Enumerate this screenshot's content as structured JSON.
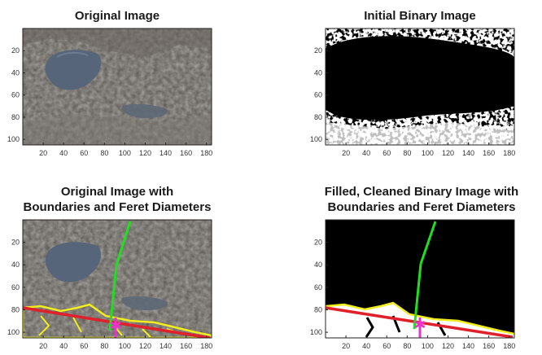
{
  "figure": {
    "panels": [
      {
        "id": "original",
        "title_lines": [
          "Original Image"
        ],
        "x_ticks": [
          "20",
          "40",
          "60",
          "80",
          "100",
          "120",
          "140",
          "160",
          "180"
        ],
        "y_ticks": [
          "20",
          "40",
          "60",
          "80",
          "100"
        ],
        "content": "photo"
      },
      {
        "id": "binary",
        "title_lines": [
          "Initial Binary Image"
        ],
        "x_ticks": [
          "20",
          "40",
          "60",
          "80",
          "100",
          "120",
          "140",
          "160",
          "180"
        ],
        "y_ticks": [
          "20",
          "40",
          "60",
          "80",
          "100"
        ],
        "content": "binary"
      },
      {
        "id": "original-overlay",
        "title_lines": [
          "Original Image with",
          "Boundaries and Feret Diameters"
        ],
        "x_ticks": [
          "20",
          "40",
          "60",
          "80",
          "100",
          "120",
          "140",
          "160",
          "180"
        ],
        "y_ticks": [
          "20",
          "40",
          "60",
          "80",
          "100"
        ],
        "content": "photo-overlay"
      },
      {
        "id": "cleaned-overlay",
        "title_lines": [
          "Filled, Cleaned Binary Image with",
          "Boundaries and Feret Diameters"
        ],
        "x_ticks": [
          "20",
          "40",
          "60",
          "80",
          "100",
          "120",
          "140",
          "160",
          "180"
        ],
        "y_ticks": [
          "20",
          "40",
          "60",
          "80",
          "100"
        ],
        "content": "cleaned-overlay"
      }
    ],
    "colors": {
      "boundary": "#f2ee1e",
      "max_feret": "#e0202a",
      "min_feret": "#22dd22",
      "centroid": "#ee33cc",
      "asphalt": "#5e5a55",
      "puddle": "#56657a"
    }
  }
}
